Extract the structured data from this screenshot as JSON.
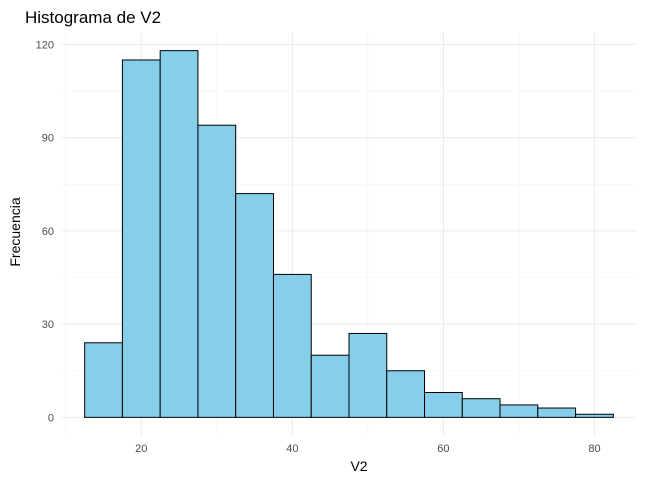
{
  "chart_data": {
    "type": "bar",
    "title": "Histograma de V2",
    "xlabel": "V2",
    "ylabel": "Frecuencia",
    "bins": [
      {
        "start": 12.5,
        "end": 17.5,
        "count": 24
      },
      {
        "start": 17.5,
        "end": 22.5,
        "count": 115
      },
      {
        "start": 22.5,
        "end": 27.5,
        "count": 118
      },
      {
        "start": 27.5,
        "end": 32.5,
        "count": 94
      },
      {
        "start": 32.5,
        "end": 37.5,
        "count": 72
      },
      {
        "start": 37.5,
        "end": 42.5,
        "count": 46
      },
      {
        "start": 42.5,
        "end": 47.5,
        "count": 20
      },
      {
        "start": 47.5,
        "end": 52.5,
        "count": 27
      },
      {
        "start": 52.5,
        "end": 57.5,
        "count": 15
      },
      {
        "start": 57.5,
        "end": 62.5,
        "count": 8
      },
      {
        "start": 62.5,
        "end": 67.5,
        "count": 6
      },
      {
        "start": 67.5,
        "end": 72.5,
        "count": 4
      },
      {
        "start": 72.5,
        "end": 77.5,
        "count": 3
      },
      {
        "start": 77.5,
        "end": 82.5,
        "count": 1
      }
    ],
    "xlim": [
      9.5,
      85.5
    ],
    "ylim": [
      -6,
      124
    ],
    "xticks": [
      20,
      40,
      60,
      80
    ],
    "xtick_labels": [
      "20",
      "40",
      "60",
      "80"
    ],
    "yticks": [
      0,
      30,
      60,
      90,
      120
    ],
    "ytick_labels": [
      "0",
      "30",
      "60",
      "90",
      "120"
    ],
    "grid": true,
    "colors": {
      "fill": "#87ceeb",
      "outline": "#000000",
      "grid": "#ebebeb"
    }
  }
}
